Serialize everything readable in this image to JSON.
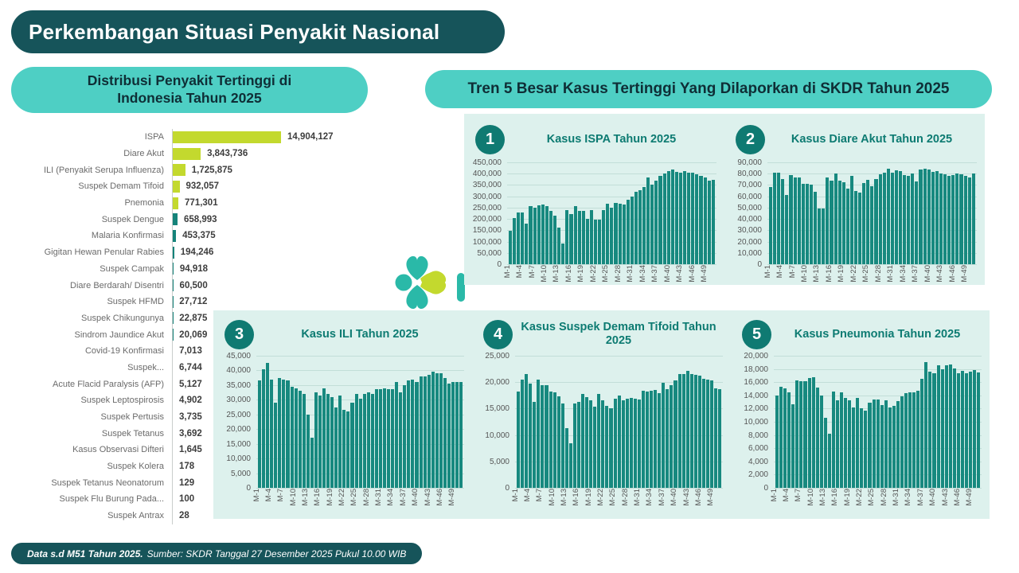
{
  "header": {
    "title": "Perkembangan Situasi Penyakit Nasional"
  },
  "left_panel": {
    "title": "Distribusi Penyakit Tertinggi di Indonesia Tahun 2025"
  },
  "trend_panel": {
    "title": "Tren 5 Besar Kasus Tertinggi Yang Dilaporkan di SKDR Tahun 2025"
  },
  "footer": {
    "period": "Data s.d M51 Tahun 2025.",
    "source": "Sumber: SKDR Tanggal 27 Desember 2025 Pukul 10.00 WIB"
  },
  "colors": {
    "dark_teal": "#16545a",
    "pill_teal": "#4ecfc4",
    "mint_panel": "#ddf1ed",
    "bar_teal": "#17897f",
    "highlight_lime": "#c3d92e",
    "chart_title_teal": "#0d7b72",
    "badge_teal": "#0f7a72"
  },
  "logo": {
    "name": "kemenkes-logo",
    "teal": "#2ab9a8",
    "lime": "#c3d92e"
  },
  "chart_data": [
    {
      "type": "bar",
      "orientation": "horizontal",
      "title": "Distribusi Penyakit Tertinggi di Indonesia Tahun 2025",
      "highlight_color": "#c3d92e",
      "bar_color": "#15837a",
      "highlight_count": 5,
      "categories": [
        "ISPA",
        "Diare Akut",
        "ILI (Penyakit Serupa Influenza)",
        "Suspek Demam Tifoid",
        "Pnemonia",
        "Suspek Dengue",
        "Malaria Konfirmasi",
        "Gigitan Hewan Penular Rabies",
        "Suspek Campak",
        "Diare Berdarah/ Disentri",
        "Suspek HFMD",
        "Suspek Chikungunya",
        "Sindrom Jaundice Akut",
        "Covid-19 Konfirmasi",
        "Suspek...",
        "Acute Flacid Paralysis (AFP)",
        "Suspek Leptospirosis",
        "Suspek Pertusis",
        "Suspek Tetanus",
        "Kasus Observasi Difteri",
        "Suspek Kolera",
        "Suspek Tetanus Neonatorum",
        "Suspek Flu Burung Pada...",
        "Suspek Antrax"
      ],
      "values": [
        14904127,
        3843736,
        1725875,
        932057,
        771301,
        658993,
        453375,
        194246,
        94918,
        60500,
        27712,
        22875,
        20069,
        7013,
        6744,
        5127,
        4902,
        3735,
        3692,
        1645,
        178,
        129,
        100,
        28
      ]
    },
    {
      "number": "1",
      "type": "bar",
      "title": "Kasus ISPA Tahun 2025",
      "ylim": [
        0,
        450000
      ],
      "ytick_step": 50000,
      "x_ticks": [
        "M-1",
        "M-4",
        "M-7",
        "M-10",
        "M-13",
        "M-16",
        "M-19",
        "M-22",
        "M-25",
        "M-28",
        "M-31",
        "M-34",
        "M-37",
        "M-40",
        "M-43",
        "M-46",
        "M-49"
      ],
      "values": [
        148000,
        203000,
        230000,
        230000,
        180000,
        257000,
        251000,
        261000,
        262000,
        257000,
        234000,
        214000,
        162000,
        91000,
        239000,
        223000,
        255000,
        236000,
        234000,
        201000,
        239000,
        196000,
        196000,
        240000,
        267000,
        251000,
        271000,
        269000,
        265000,
        285000,
        298000,
        321000,
        328000,
        340000,
        382000,
        352000,
        368000,
        390000,
        402000,
        412000,
        418000,
        408000,
        405000,
        410000,
        406000,
        403000,
        398000,
        392000,
        385000,
        370000,
        373000
      ]
    },
    {
      "number": "2",
      "type": "bar",
      "title": "Kasus Diare Akut Tahun 2025",
      "ylim": [
        0,
        90000
      ],
      "ytick_step": 10000,
      "x_ticks": [
        "M-1",
        "M-4",
        "M-7",
        "M-10",
        "M-13",
        "M-16",
        "M-19",
        "M-22",
        "M-25",
        "M-28",
        "M-31",
        "M-34",
        "M-37",
        "M-40",
        "M-43",
        "M-46",
        "M-49"
      ],
      "values": [
        68500,
        81000,
        81000,
        75000,
        61000,
        79000,
        77000,
        76500,
        71000,
        71000,
        70000,
        64000,
        49500,
        49500,
        77000,
        73500,
        80000,
        74000,
        72500,
        67000,
        78000,
        65000,
        63500,
        72000,
        74500,
        69000,
        75000,
        79500,
        81000,
        84500,
        81000,
        83000,
        82000,
        78500,
        78000,
        80000,
        73000,
        83500,
        84500,
        84000,
        81500,
        82000,
        80000,
        79500,
        78000,
        79000,
        80500,
        79500,
        78000,
        76500,
        80500
      ]
    },
    {
      "number": "3",
      "type": "bar",
      "title": "Kasus ILI Tahun 2025",
      "ylim": [
        0,
        45000
      ],
      "ytick_step": 5000,
      "x_ticks": [
        "M-1",
        "M-4",
        "M-7",
        "M-10",
        "M-13",
        "M-16",
        "M-19",
        "M-22",
        "M-25",
        "M-28",
        "M-31",
        "M-34",
        "M-37",
        "M-40",
        "M-43",
        "M-46",
        "M-49"
      ],
      "values": [
        36500,
        40500,
        42500,
        37000,
        29000,
        37500,
        37000,
        36500,
        34500,
        34000,
        33000,
        32000,
        25000,
        17000,
        32500,
        31500,
        34000,
        32000,
        31000,
        27500,
        31500,
        26500,
        26000,
        29000,
        32000,
        30500,
        32000,
        32500,
        32000,
        33500,
        33500,
        34000,
        33500,
        33500,
        36000,
        32500,
        35000,
        36500,
        37000,
        36000,
        38000,
        38000,
        38500,
        39500,
        39000,
        39000,
        37500,
        35500,
        36000,
        36000,
        36000
      ]
    },
    {
      "number": "4",
      "type": "bar",
      "title": "Kasus Suspek Demam Tifoid Tahun 2025",
      "ylim": [
        0,
        25000
      ],
      "ytick_step": 5000,
      "x_ticks": [
        "M-1",
        "M-4",
        "M-7",
        "M-10",
        "M-13",
        "M-16",
        "M-19",
        "M-22",
        "M-25",
        "M-28",
        "M-31",
        "M-34",
        "M-37",
        "M-40",
        "M-43",
        "M-46",
        "M-49"
      ],
      "values": [
        18200,
        20500,
        21500,
        19700,
        16200,
        20500,
        19500,
        19500,
        18200,
        18000,
        17300,
        16000,
        11300,
        8500,
        16000,
        16200,
        17700,
        17200,
        16500,
        15300,
        17700,
        16500,
        15500,
        15100,
        16800,
        17500,
        16600,
        16800,
        17000,
        16900,
        16700,
        18400,
        18200,
        18400,
        18500,
        17900,
        19900,
        18700,
        19500,
        20400,
        21500,
        21600,
        22100,
        21600,
        21400,
        21300,
        20700,
        20500,
        20400,
        18900,
        18700
      ]
    },
    {
      "number": "5",
      "type": "bar",
      "title": "Kasus Pneumonia Tahun 2025",
      "ylim": [
        0,
        20000
      ],
      "ytick_step": 2000,
      "x_ticks": [
        "M-1",
        "M-4",
        "M-7",
        "M-10",
        "M-13",
        "M-16",
        "M-19",
        "M-22",
        "M-25",
        "M-28",
        "M-31",
        "M-34",
        "M-37",
        "M-40",
        "M-43",
        "M-46",
        "M-49"
      ],
      "values": [
        14000,
        15300,
        15100,
        14500,
        12700,
        16300,
        16100,
        16200,
        16600,
        16700,
        15200,
        14000,
        10600,
        8200,
        14600,
        13200,
        14400,
        13600,
        13300,
        12200,
        13600,
        12100,
        11700,
        12900,
        13400,
        13400,
        12500,
        13300,
        12200,
        12400,
        13100,
        13900,
        14300,
        14500,
        14400,
        14700,
        16500,
        19000,
        17600,
        17300,
        18500,
        17900,
        18600,
        18700,
        18100,
        17400,
        17700,
        17400,
        17600,
        17800,
        17500
      ]
    }
  ]
}
